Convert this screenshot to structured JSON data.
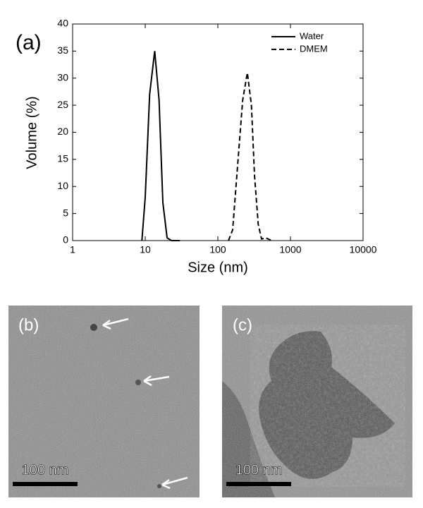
{
  "chart_data": {
    "type": "line",
    "annotation": "(a)",
    "x_label": "Size (nm)",
    "y_label": "Volume (%)",
    "xscale": "log",
    "xlim": [
      1,
      10000
    ],
    "xticks": [
      1,
      10,
      100,
      1000,
      10000
    ],
    "ylim": [
      0,
      40
    ],
    "yticks": [
      0,
      5,
      10,
      15,
      20,
      25,
      30,
      35,
      40
    ],
    "grid": false,
    "legend": "upper right",
    "series": [
      {
        "name": "Water",
        "color": "#000000",
        "dashed": false,
        "x": [
          9,
          10,
          11.5,
          13.5,
          15.5,
          17.5,
          20,
          23,
          30
        ],
        "values": [
          0,
          8,
          27,
          35,
          26,
          7,
          0.5,
          0,
          0
        ]
      },
      {
        "name": "DMEM",
        "color": "#000000",
        "dashed": true,
        "x": [
          140,
          160,
          190,
          220,
          255,
          290,
          320,
          360,
          400,
          460,
          550
        ],
        "values": [
          0,
          2,
          15,
          26,
          31,
          25,
          12,
          3,
          0.3,
          0.5,
          0
        ]
      }
    ]
  },
  "images": [
    {
      "label": "(b)",
      "scale_bar": "100 nm"
    },
    {
      "label": "(c)",
      "scale_bar": "100 nm"
    }
  ]
}
